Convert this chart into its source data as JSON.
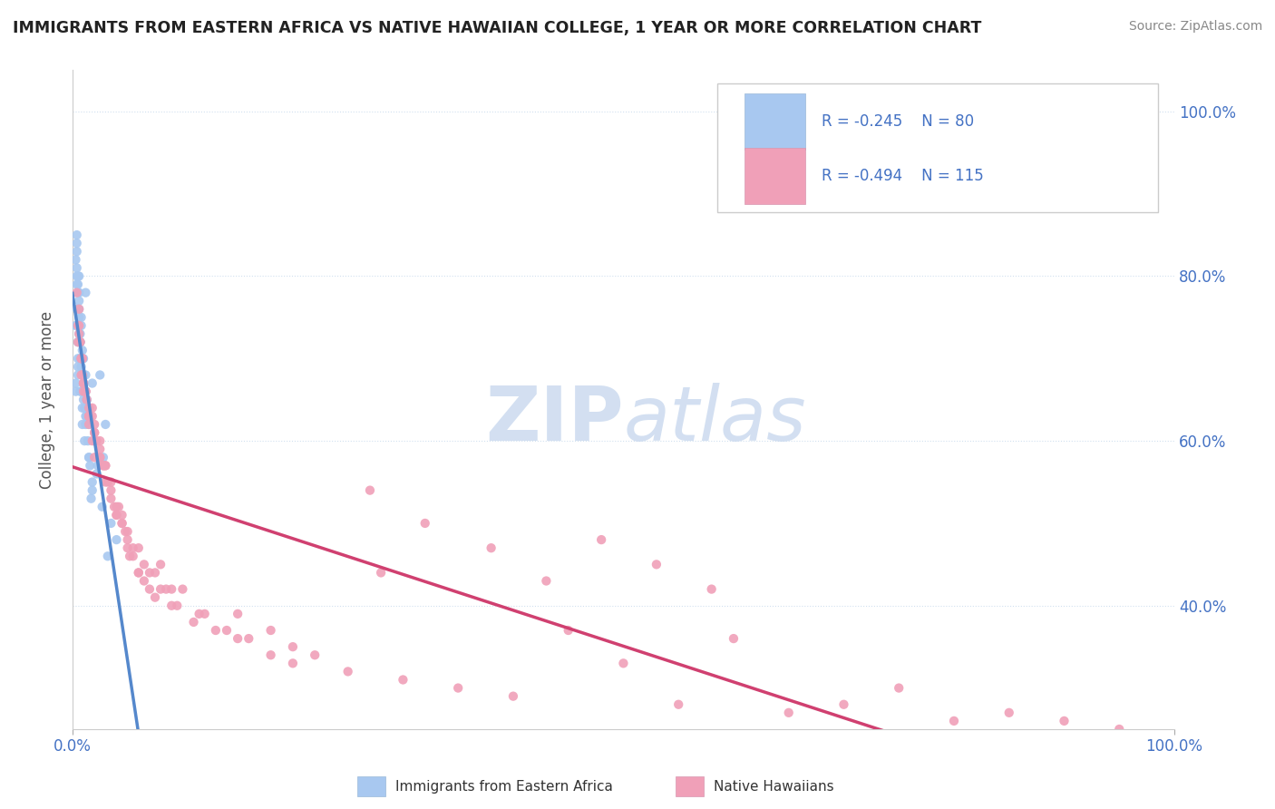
{
  "title": "IMMIGRANTS FROM EASTERN AFRICA VS NATIVE HAWAIIAN COLLEGE, 1 YEAR OR MORE CORRELATION CHART",
  "source": "Source: ZipAtlas.com",
  "ylabel": "College, 1 year or more",
  "legend_r1": "R = -0.245",
  "legend_n1": "N = 80",
  "legend_r2": "R = -0.494",
  "legend_n2": "N = 115",
  "color_blue": "#a8c8f0",
  "color_pink": "#f0a0b8",
  "color_blue_line": "#5588cc",
  "color_pink_line": "#d04070",
  "color_blue_text": "#4472c4",
  "watermark_color": "#c8d8ee",
  "xlim": [
    0,
    100
  ],
  "ylim": [
    25,
    105
  ],
  "blue_x": [
    0.5,
    0.8,
    0.3,
    1.2,
    0.6,
    0.9,
    0.4,
    1.5,
    0.7,
    1.0,
    0.5,
    0.3,
    0.8,
    1.2,
    0.6,
    2.0,
    1.8,
    0.4,
    0.9,
    1.3,
    0.6,
    0.5,
    1.0,
    0.7,
    0.4,
    1.6,
    0.8,
    1.1,
    0.3,
    2.5,
    0.5,
    0.9,
    1.4,
    0.6,
    1.2,
    0.8,
    3.0,
    1.5,
    0.4,
    0.7,
    1.0,
    0.6,
    2.2,
    1.7,
    0.5,
    0.8,
    1.3,
    0.4,
    1.8,
    0.9,
    0.6,
    1.1,
    2.8,
    0.5,
    0.7,
    1.5,
    0.4,
    0.9,
    2.3,
    1.2,
    0.6,
    1.8,
    3.5,
    0.5,
    1.0,
    0.4,
    2.0,
    0.7,
    1.3,
    0.8,
    0.5,
    4.0,
    0.3,
    1.5,
    2.7,
    0.6,
    0.9,
    3.2,
    1.2,
    0.7
  ],
  "blue_y": [
    72,
    75,
    82,
    78,
    80,
    70,
    76,
    64,
    73,
    68,
    69,
    66,
    74,
    63,
    77,
    60,
    67,
    79,
    71,
    65,
    75,
    68,
    70,
    72,
    80,
    57,
    66,
    64,
    74,
    68,
    70,
    62,
    60,
    78,
    66,
    69,
    62,
    58,
    81,
    72,
    65,
    74,
    56,
    53,
    76,
    70,
    63,
    83,
    55,
    68,
    72,
    60,
    58,
    79,
    66,
    62,
    84,
    64,
    57,
    68,
    76,
    54,
    50,
    80,
    67,
    85,
    60,
    72,
    65,
    70,
    78,
    48,
    67,
    58,
    52,
    73,
    68,
    46,
    62,
    70
  ],
  "pink_x": [
    0.5,
    0.8,
    1.2,
    0.6,
    1.5,
    2.0,
    0.9,
    3.0,
    1.8,
    0.4,
    2.5,
    4.0,
    1.0,
    0.7,
    3.5,
    5.0,
    1.3,
    0.6,
    2.8,
    6.0,
    1.5,
    4.5,
    0.8,
    2.0,
    7.0,
    1.0,
    3.2,
    5.5,
    0.5,
    9.0,
    1.8,
    0.9,
    4.8,
    2.5,
    6.5,
    1.2,
    3.8,
    8.0,
    0.6,
    5.2,
    1.5,
    2.2,
    7.5,
    4.0,
    11.0,
    0.8,
    3.5,
    6.0,
    1.0,
    9.5,
    2.0,
    5.0,
    13.0,
    1.5,
    4.2,
    8.5,
    0.7,
    3.0,
    15.0,
    2.5,
    6.5,
    11.5,
    1.2,
    4.5,
    18.0,
    0.9,
    7.0,
    14.0,
    2.8,
    5.5,
    20.0,
    1.5,
    9.0,
    16.0,
    3.5,
    25.0,
    1.0,
    7.5,
    22.0,
    4.0,
    12.0,
    30.0,
    2.0,
    8.0,
    35.0,
    5.0,
    18.0,
    40.0,
    3.0,
    10.0,
    45.0,
    1.8,
    6.0,
    28.0,
    55.0,
    2.5,
    15.0,
    65.0,
    4.5,
    20.0,
    70.0,
    50.0,
    80.0,
    75.0,
    90.0,
    60.0,
    85.0,
    95.0,
    43.0,
    38.0,
    32.0,
    27.0,
    48.0,
    53.0,
    58.0
  ],
  "pink_y": [
    72,
    68,
    66,
    74,
    63,
    61,
    70,
    57,
    64,
    78,
    59,
    52,
    67,
    72,
    54,
    48,
    65,
    76,
    57,
    44,
    63,
    50,
    70,
    62,
    42,
    67,
    55,
    46,
    74,
    40,
    60,
    70,
    49,
    58,
    43,
    66,
    52,
    42,
    73,
    46,
    62,
    60,
    41,
    51,
    38,
    70,
    55,
    44,
    66,
    40,
    58,
    47,
    37,
    64,
    52,
    42,
    72,
    57,
    36,
    60,
    45,
    39,
    66,
    50,
    34,
    68,
    44,
    37,
    57,
    47,
    33,
    63,
    42,
    36,
    53,
    32,
    67,
    44,
    34,
    51,
    39,
    31,
    61,
    45,
    30,
    49,
    37,
    29,
    55,
    42,
    37,
    63,
    47,
    44,
    28,
    58,
    39,
    27,
    51,
    35,
    28,
    33,
    26,
    30,
    26,
    36,
    27,
    25,
    43,
    47,
    50,
    54,
    48,
    45,
    42
  ]
}
